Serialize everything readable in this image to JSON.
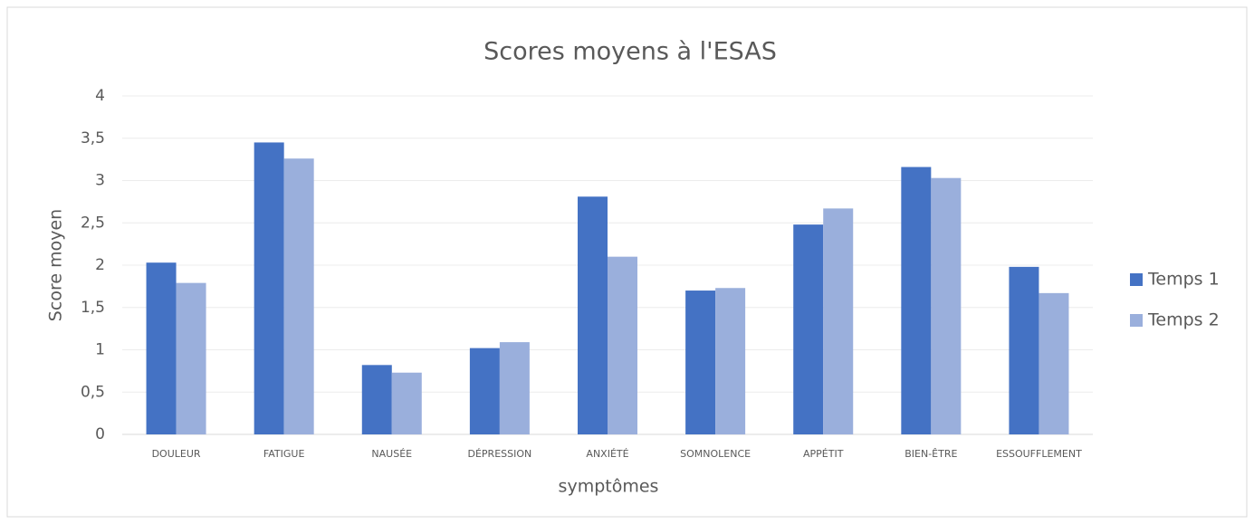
{
  "chart_data": {
    "type": "bar",
    "title": "Scores moyens à l'ESAS",
    "x_label": "symptômes",
    "y_label": "Score moyen",
    "categories": [
      "DOULEUR",
      "FATIGUE",
      "NAUSÉE",
      "DÉPRESSION",
      "ANXIÉTÉ",
      "SOMNOLENCE",
      "APPÉTIT",
      "BIEN-ÊTRE",
      "ESSOUFFLEMENT"
    ],
    "series": [
      {
        "name": "Temps 1",
        "color": "#4472c4",
        "values": [
          2.03,
          3.45,
          0.82,
          1.02,
          2.81,
          1.7,
          2.48,
          3.16,
          1.98
        ]
      },
      {
        "name": "Temps 2",
        "color": "#9aafdc",
        "values": [
          1.79,
          3.26,
          0.73,
          1.09,
          2.1,
          1.73,
          2.67,
          3.03,
          1.67
        ]
      }
    ],
    "ylim": [
      0,
      4
    ],
    "yticks": [
      0,
      {
        "value": 0.5,
        "label": "0,5"
      },
      1,
      {
        "value": 1.5,
        "label": "1,5"
      },
      2,
      {
        "value": 2.5,
        "label": "2,5"
      },
      3,
      {
        "value": 3.5,
        "label": "3,5"
      },
      4
    ],
    "grid": true,
    "legend": "right"
  }
}
